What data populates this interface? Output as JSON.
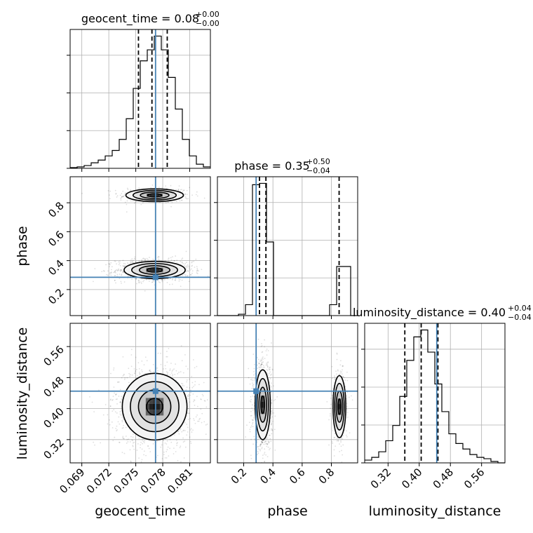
{
  "chart_data": {
    "type": "corner",
    "parameters": [
      "geocent_time",
      "phase",
      "luminosity_distance"
    ],
    "truth": {
      "geocent_time": 0.0772,
      "phase": 0.285,
      "luminosity_distance": 0.445,
      "color": "#4682b4"
    },
    "titles": {
      "geocent_time": {
        "name": "geocent_time",
        "median": "0.08",
        "plus": "+0.00",
        "minus": "−0.00"
      },
      "phase": {
        "name": "phase",
        "median": "0.35",
        "plus": "+0.50",
        "minus": "−0.04"
      },
      "luminosity_distance": {
        "name": "luminosity_distance",
        "median": "0.40",
        "plus": "+0.04",
        "minus": "−0.04"
      }
    },
    "axes": {
      "geocent_time": {
        "range": [
          0.0677,
          0.0833
        ],
        "ticks": [
          "0.069",
          "0.072",
          "0.075",
          "0.078",
          "0.081"
        ],
        "tick_values": [
          0.069,
          0.072,
          0.075,
          0.078,
          0.081
        ]
      },
      "phase": {
        "range": [
          0.02,
          0.98
        ],
        "ticks": [
          "0.2",
          "0.4",
          "0.6",
          "0.8"
        ],
        "tick_values": [
          0.2,
          0.4,
          0.6,
          0.8
        ]
      },
      "luminosity_distance": {
        "range": [
          0.26,
          0.62
        ],
        "ticks": [
          "0.32",
          "0.40",
          "0.48",
          "0.56"
        ],
        "tick_values": [
          0.32,
          0.4,
          0.48,
          0.56
        ]
      }
    },
    "histograms": {
      "geocent_time": {
        "bin_edges": [
          0.0677,
          0.06848,
          0.06926,
          0.07004,
          0.07082,
          0.0716,
          0.07238,
          0.07316,
          0.07394,
          0.07472,
          0.0755,
          0.07628,
          0.07706,
          0.07784,
          0.07862,
          0.0794,
          0.08018,
          0.08096,
          0.08174,
          0.08252,
          0.0833
        ],
        "counts": [
          0.5,
          1,
          2,
          4,
          6,
          9,
          13,
          21,
          36,
          58,
          78,
          86,
          96,
          86,
          66,
          43,
          21,
          9,
          3,
          1
        ],
        "quantiles": [
          0.0753,
          0.0768,
          0.0785
        ]
      },
      "phase": {
        "bin_edges": [
          0.02,
          0.068,
          0.116,
          0.164,
          0.212,
          0.26,
          0.308,
          0.356,
          0.404,
          0.452,
          0.5,
          0.548,
          0.596,
          0.644,
          0.692,
          0.74,
          0.788,
          0.836,
          0.884,
          0.932,
          0.98
        ],
        "counts": [
          0,
          0,
          0,
          1,
          8,
          96,
          97,
          54,
          0,
          0,
          0,
          0,
          0,
          0,
          0,
          0,
          8,
          36,
          36,
          0
        ],
        "quantiles": [
          0.308,
          0.352,
          0.853
        ]
      },
      "luminosity_distance": {
        "bin_edges": [
          0.26,
          0.278,
          0.296,
          0.314,
          0.332,
          0.35,
          0.368,
          0.386,
          0.404,
          0.422,
          0.44,
          0.458,
          0.476,
          0.494,
          0.512,
          0.53,
          0.548,
          0.566,
          0.584,
          0.602,
          0.62
        ],
        "counts": [
          2,
          4,
          8,
          16,
          27,
          48,
          74,
          91,
          96,
          80,
          57,
          37,
          21,
          14,
          10,
          6,
          4,
          3,
          1,
          0
        ],
        "quantiles": [
          0.363,
          0.405,
          0.448
        ]
      }
    },
    "pairs": [
      {
        "x": "geocent_time",
        "y": "phase",
        "modes": [
          {
            "cx": 0.0771,
            "cy": 0.852,
            "sx": 0.0016,
            "sy": 0.022,
            "weight": 0.28
          },
          {
            "cx": 0.0771,
            "cy": 0.335,
            "sx": 0.0017,
            "sy": 0.03,
            "weight": 0.72
          }
        ]
      },
      {
        "x": "geocent_time",
        "y": "luminosity_distance",
        "modes": [
          {
            "cx": 0.0771,
            "cy": 0.405,
            "sx": 0.0018,
            "sy": 0.043,
            "weight": 1
          }
        ]
      },
      {
        "x": "phase",
        "y": "luminosity_distance",
        "modes": [
          {
            "cx": 0.33,
            "cy": 0.41,
            "sx": 0.026,
            "sy": 0.045,
            "weight": 0.72
          },
          {
            "cx": 0.855,
            "cy": 0.405,
            "sx": 0.022,
            "sy": 0.04,
            "weight": 0.28
          }
        ]
      }
    ],
    "grid": true
  }
}
